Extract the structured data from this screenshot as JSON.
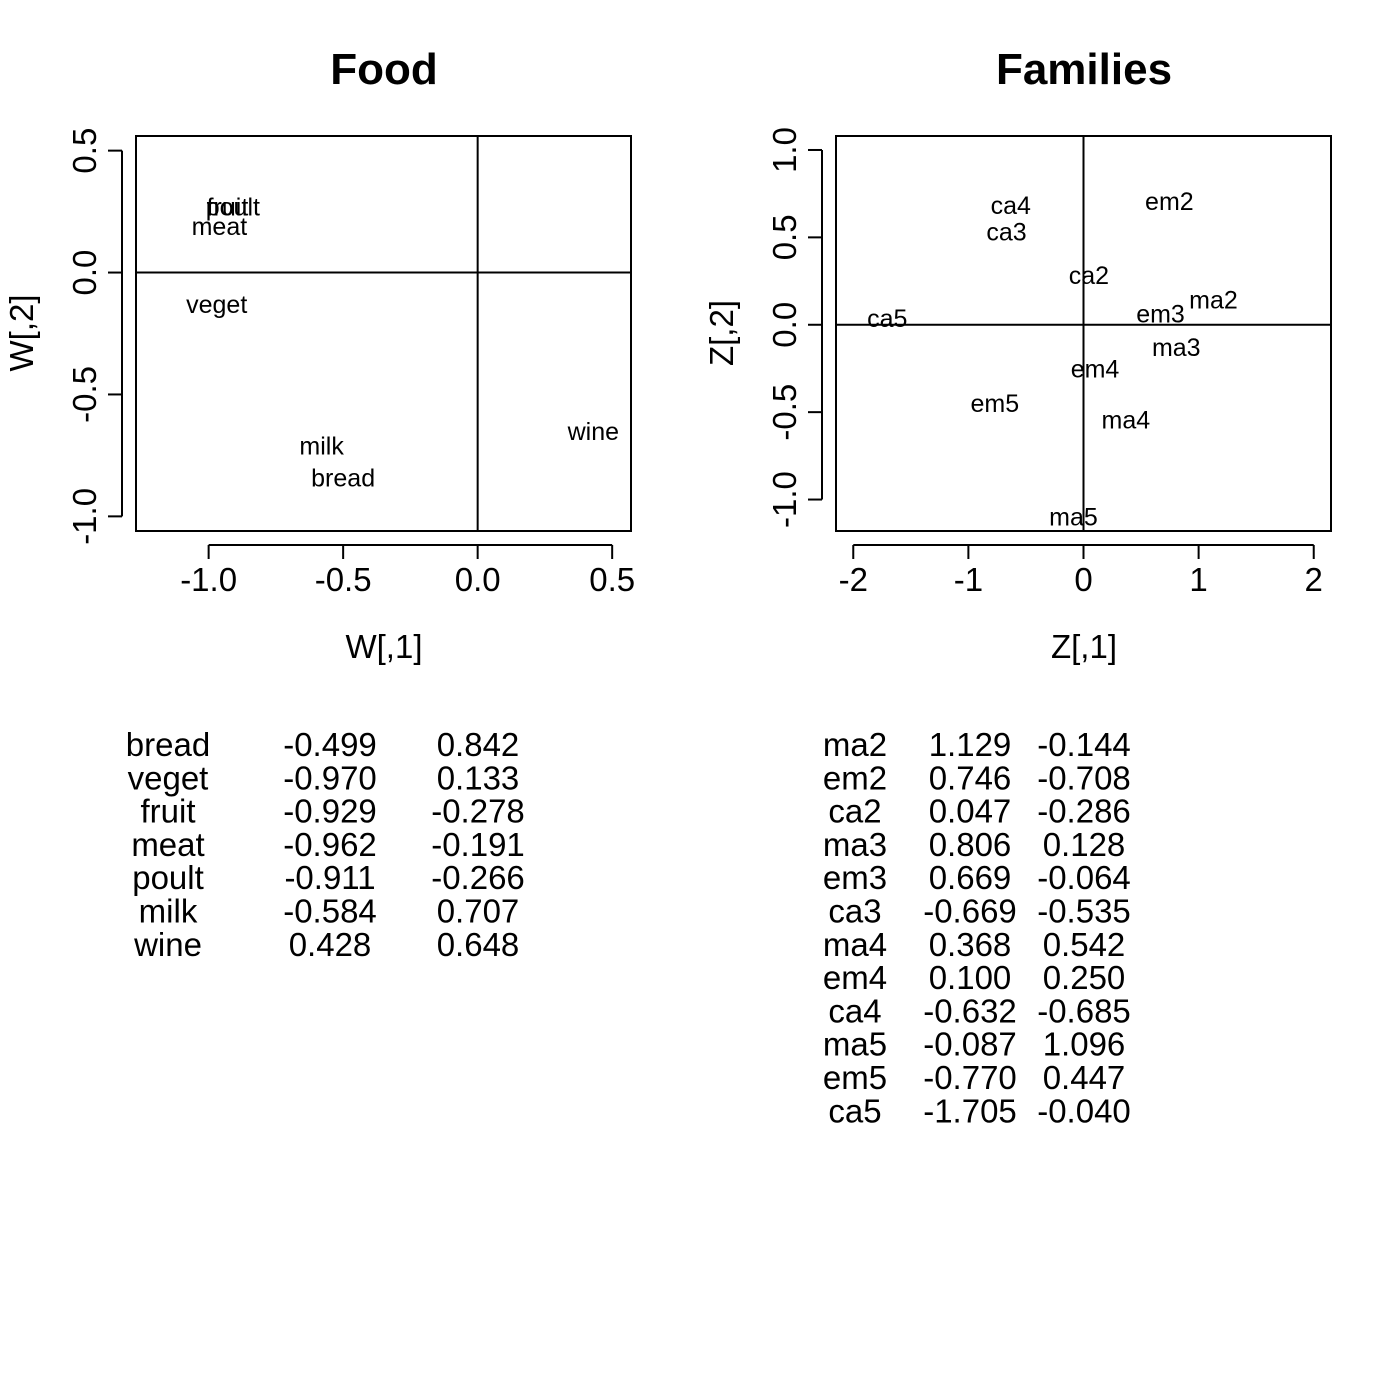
{
  "chart_data": [
    {
      "type": "scatter",
      "title": "Food",
      "xlabel": "W[,1]",
      "ylabel": "W[,2]",
      "xlim": [
        -1.27,
        0.57
      ],
      "ylim": [
        -1.06,
        0.56
      ],
      "x_ticks": [
        -1.0,
        -0.5,
        0.0,
        0.5
      ],
      "x_tick_labels": [
        "-1.0",
        "-0.5",
        "0.0",
        "0.5"
      ],
      "y_ticks": [
        -1.0,
        -0.5,
        0.0,
        0.5
      ],
      "y_tick_labels": [
        "-1.0",
        "-0.5",
        "0.0",
        "0.5"
      ],
      "reference_lines": {
        "x": 0,
        "y": 0
      },
      "points": [
        {
          "label": "fruit",
          "x": -0.93,
          "y": 0.27
        },
        {
          "label": "poult",
          "x": -0.91,
          "y": 0.27
        },
        {
          "label": "meat",
          "x": -0.96,
          "y": 0.19
        },
        {
          "label": "veget",
          "x": -0.97,
          "y": -0.13
        },
        {
          "label": "milk",
          "x": -0.58,
          "y": -0.71
        },
        {
          "label": "bread",
          "x": -0.5,
          "y": -0.84
        },
        {
          "label": "wine",
          "x": 0.43,
          "y": -0.65
        }
      ],
      "table": {
        "rows": [
          [
            "bread",
            "-0.499",
            "0.842"
          ],
          [
            "veget",
            "-0.970",
            "0.133"
          ],
          [
            "fruit",
            "-0.929",
            "-0.278"
          ],
          [
            "meat",
            "-0.962",
            "-0.191"
          ],
          [
            "poult",
            "-0.911",
            "-0.266"
          ],
          [
            "milk",
            "-0.584",
            "0.707"
          ],
          [
            "wine",
            "0.428",
            "0.648"
          ]
        ]
      }
    },
    {
      "type": "scatter",
      "title": "Families",
      "xlabel": "Z[,1]",
      "ylabel": "Z[,2]",
      "xlim": [
        -2.15,
        2.15
      ],
      "ylim": [
        -1.18,
        1.08
      ],
      "x_ticks": [
        -2,
        -1,
        0,
        1,
        2
      ],
      "x_tick_labels": [
        "-2",
        "-1",
        "0",
        "1",
        "2"
      ],
      "y_ticks": [
        -1.0,
        -0.5,
        0.0,
        0.5,
        1.0
      ],
      "y_tick_labels": [
        "-1.0",
        "-0.5",
        "0.0",
        "0.5",
        "1.0"
      ],
      "reference_lines": {
        "x": 0,
        "y": 0
      },
      "points": [
        {
          "label": "ma2",
          "x": 1.129,
          "y": 0.144
        },
        {
          "label": "em2",
          "x": 0.746,
          "y": 0.708
        },
        {
          "label": "ca2",
          "x": 0.047,
          "y": 0.286
        },
        {
          "label": "ma3",
          "x": 0.806,
          "y": -0.128
        },
        {
          "label": "em3",
          "x": 0.669,
          "y": 0.064
        },
        {
          "label": "ca3",
          "x": -0.669,
          "y": 0.535
        },
        {
          "label": "ma4",
          "x": 0.368,
          "y": -0.542
        },
        {
          "label": "em4",
          "x": 0.1,
          "y": -0.25
        },
        {
          "label": "ca4",
          "x": -0.632,
          "y": 0.685
        },
        {
          "label": "ma5",
          "x": -0.087,
          "y": -1.096
        },
        {
          "label": "em5",
          "x": -0.77,
          "y": -0.447
        },
        {
          "label": "ca5",
          "x": -1.705,
          "y": 0.04
        }
      ],
      "table": {
        "rows": [
          [
            "ma2",
            "1.129",
            "-0.144"
          ],
          [
            "em2",
            "0.746",
            "-0.708"
          ],
          [
            "ca2",
            "0.047",
            "-0.286"
          ],
          [
            "ma3",
            "0.806",
            "0.128"
          ],
          [
            "em3",
            "0.669",
            "-0.064"
          ],
          [
            "ca3",
            "-0.669",
            "-0.535"
          ],
          [
            "ma4",
            "0.368",
            "0.542"
          ],
          [
            "em4",
            "0.100",
            "0.250"
          ],
          [
            "ca4",
            "-0.632",
            "-0.685"
          ],
          [
            "ma5",
            "-0.087",
            "1.096"
          ],
          [
            "em5",
            "-0.770",
            "0.447"
          ],
          [
            "ca5",
            "-1.705",
            "-0.040"
          ]
        ]
      }
    }
  ]
}
